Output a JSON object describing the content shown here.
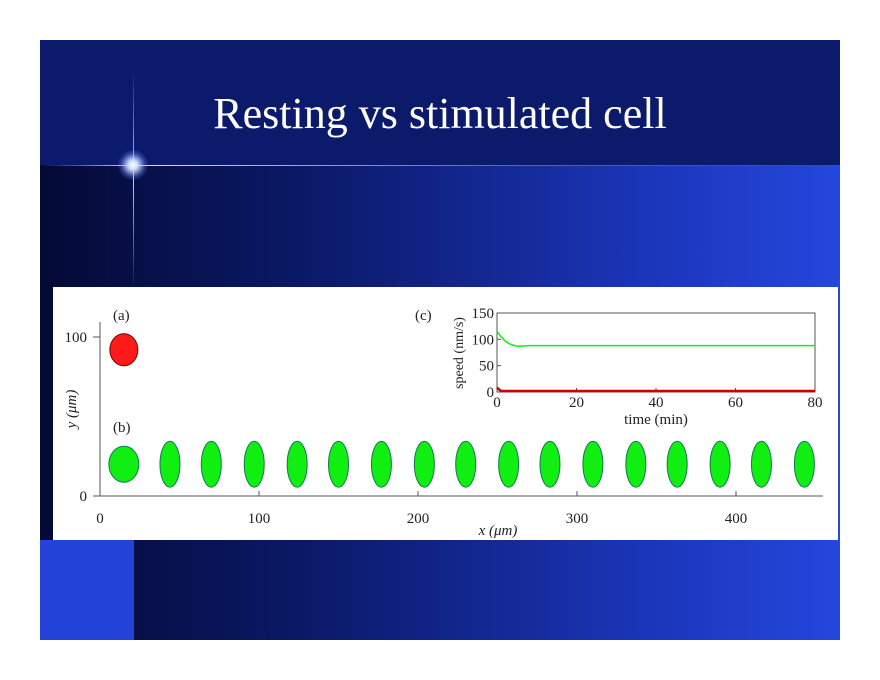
{
  "slide": {
    "title": "Resting vs stimulated cell"
  },
  "colors": {
    "resting": "#ff1a1a",
    "stimulated": "#11ee11",
    "header": "#0c1a6c"
  },
  "chart_data": [
    {
      "type": "scatter",
      "panel_labels": [
        "(a)",
        "(b)"
      ],
      "xlabel": "x (μm)",
      "ylabel": "y (μm)",
      "xlim": [
        0,
        455
      ],
      "ylim": [
        0,
        110
      ],
      "xticks": [
        "0",
        "100",
        "200",
        "300",
        "400"
      ],
      "yticks": [
        "0",
        "100"
      ],
      "resting_cell": {
        "x": 15,
        "y": 92,
        "shape": "round"
      },
      "stimulated_cells": {
        "y": 20,
        "x": [
          15,
          44,
          70,
          97,
          124,
          150,
          177,
          204,
          230,
          257,
          283,
          310,
          337,
          363,
          390,
          416,
          443
        ],
        "shape": [
          "round",
          "elongated",
          "elongated",
          "elongated",
          "elongated",
          "elongated",
          "elongated",
          "elongated",
          "elongated",
          "elongated",
          "elongated",
          "elongated",
          "elongated",
          "elongated",
          "elongated",
          "elongated",
          "elongated"
        ]
      }
    },
    {
      "type": "line",
      "panel_label": "(c)",
      "xlabel": "time (min)",
      "ylabel": "speed (nm/s)",
      "xlim": [
        0,
        80
      ],
      "ylim": [
        0,
        150
      ],
      "xticks": [
        "0",
        "20",
        "40",
        "60",
        "80"
      ],
      "yticks": [
        "0",
        "50",
        "100",
        "150"
      ],
      "series": [
        {
          "color": "#11ee11",
          "x": [
            0,
            1,
            2,
            3,
            4,
            5,
            6,
            8,
            10,
            20,
            30,
            40,
            50,
            60,
            70,
            80
          ],
          "y": [
            115,
            105,
            97,
            92,
            89,
            87,
            87,
            88,
            88,
            88,
            88,
            88,
            88,
            88,
            88,
            88
          ]
        },
        {
          "color": "#cc0000",
          "x": [
            0,
            1,
            80
          ],
          "y": [
            8,
            2,
            2
          ]
        }
      ]
    }
  ]
}
